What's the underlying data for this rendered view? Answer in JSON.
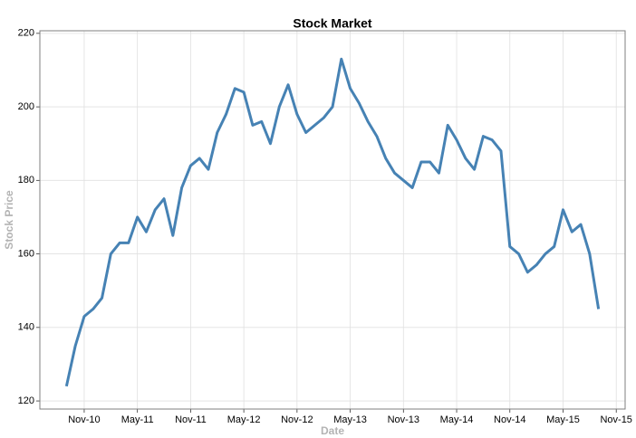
{
  "chart_data": {
    "type": "line",
    "title": "Stock Market",
    "x_label": "Date",
    "y_label": "Stock Price",
    "x": [
      "2010-09",
      "2010-10",
      "2010-11",
      "2010-12",
      "2011-01",
      "2011-02",
      "2011-03",
      "2011-04",
      "2011-05",
      "2011-06",
      "2011-07",
      "2011-08",
      "2011-09",
      "2011-10",
      "2011-11",
      "2011-12",
      "2012-01",
      "2012-02",
      "2012-03",
      "2012-04",
      "2012-05",
      "2012-06",
      "2012-07",
      "2012-08",
      "2012-09",
      "2012-10",
      "2012-11",
      "2012-12",
      "2013-01",
      "2013-02",
      "2013-03",
      "2013-04",
      "2013-05",
      "2013-06",
      "2013-07",
      "2013-08",
      "2013-09",
      "2013-10",
      "2013-11",
      "2013-12",
      "2014-01",
      "2014-02",
      "2014-03",
      "2014-04",
      "2014-05",
      "2014-06",
      "2014-07",
      "2014-08",
      "2014-09",
      "2014-10",
      "2014-11",
      "2014-12",
      "2015-01",
      "2015-02",
      "2015-03",
      "2015-04",
      "2015-05",
      "2015-06",
      "2015-07",
      "2015-08",
      "2015-09"
    ],
    "values": [
      124,
      135,
      143,
      145,
      148,
      160,
      163,
      163,
      170,
      166,
      172,
      175,
      165,
      178,
      184,
      186,
      183,
      193,
      198,
      205,
      204,
      195,
      196,
      190,
      200,
      206,
      198,
      193,
      195,
      197,
      200,
      213,
      205,
      201,
      196,
      192,
      186,
      182,
      180,
      178,
      185,
      185,
      182,
      195,
      191,
      186,
      183,
      192,
      191,
      188,
      162,
      160,
      155,
      157,
      160,
      162,
      172,
      166,
      168,
      160,
      145
    ],
    "color": "#4682b4",
    "xlim": [
      "2010-06",
      "2015-12"
    ],
    "xticks": [
      {
        "value": "2010-11",
        "label": "Nov-10"
      },
      {
        "value": "2011-05",
        "label": "May-11"
      },
      {
        "value": "2011-11",
        "label": "Nov-11"
      },
      {
        "value": "2012-05",
        "label": "May-12"
      },
      {
        "value": "2012-11",
        "label": "Nov-12"
      },
      {
        "value": "2013-05",
        "label": "May-13"
      },
      {
        "value": "2013-11",
        "label": "Nov-13"
      },
      {
        "value": "2014-05",
        "label": "May-14"
      },
      {
        "value": "2014-11",
        "label": "Nov-14"
      },
      {
        "value": "2015-05",
        "label": "May-15"
      },
      {
        "value": "2015-11",
        "label": "Nov-15"
      }
    ],
    "ylim": [
      117.8,
      220.7
    ],
    "yticks": [
      120,
      140,
      160,
      180,
      200,
      220
    ],
    "grid": true
  }
}
